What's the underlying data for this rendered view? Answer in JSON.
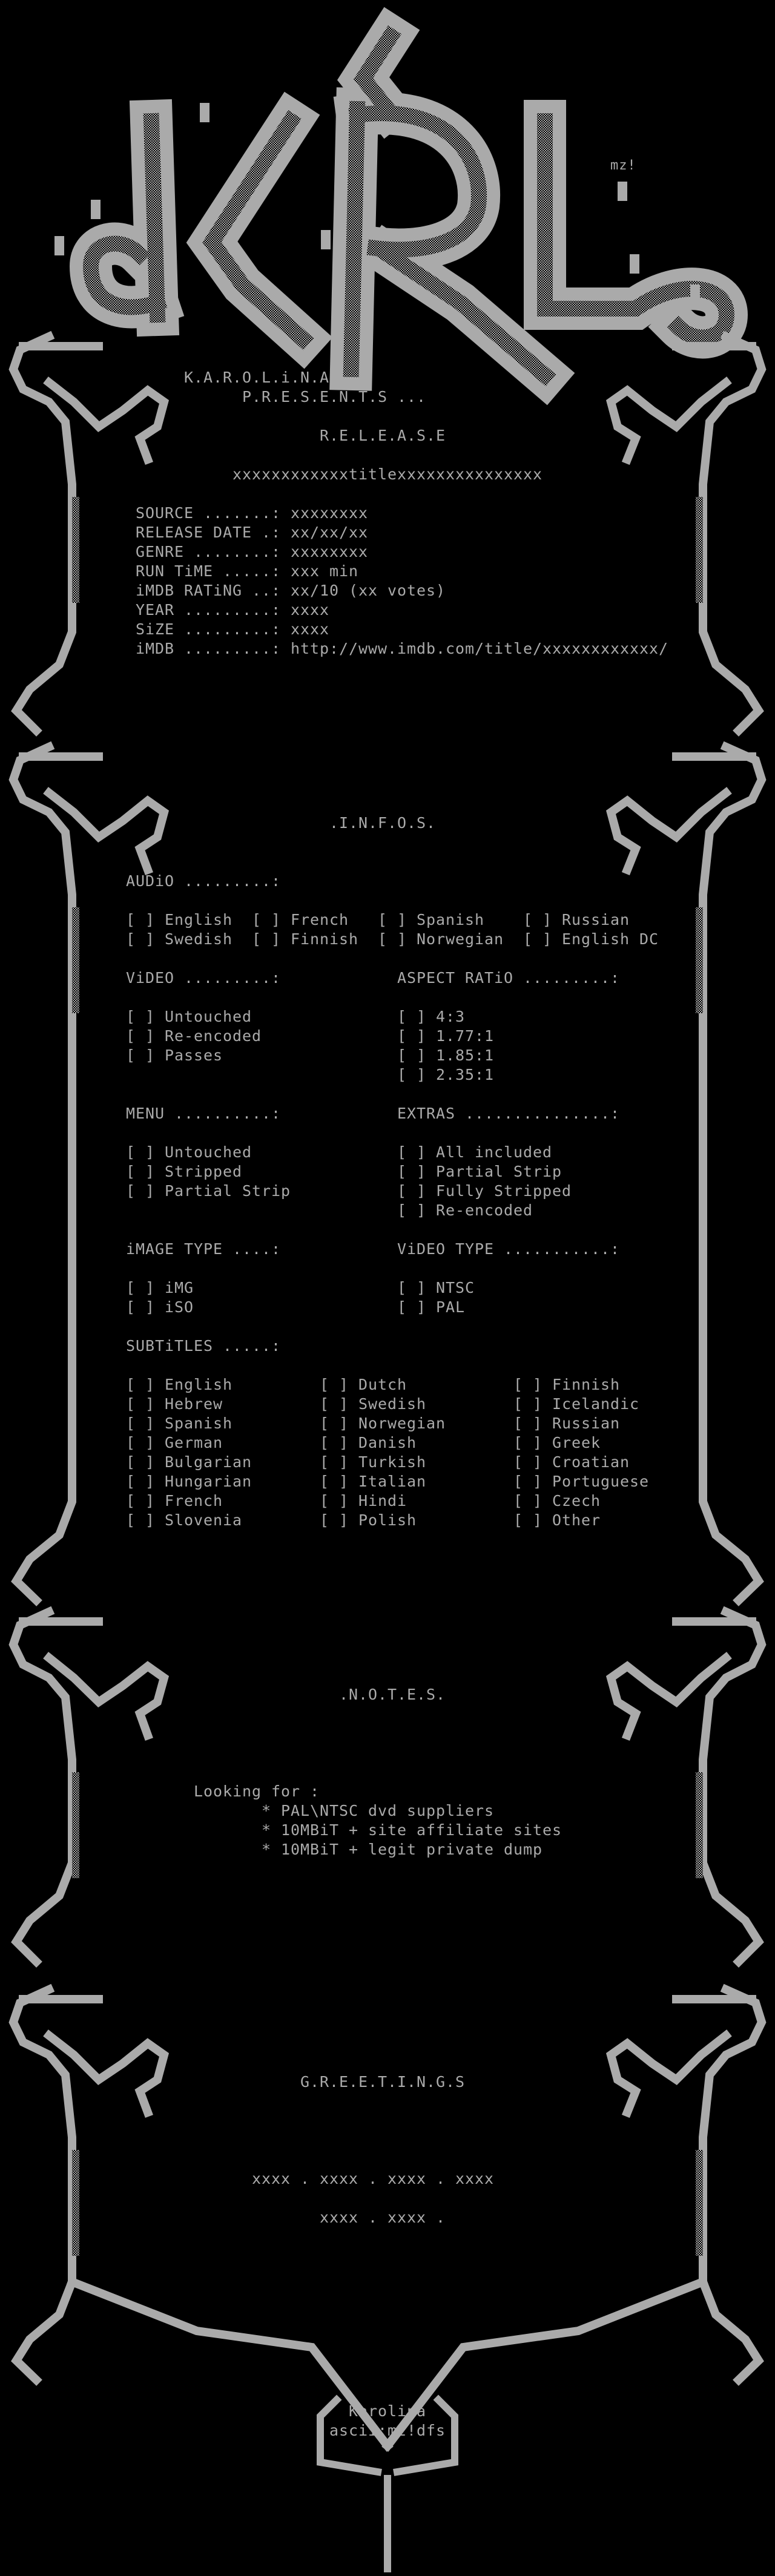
{
  "colors": {
    "background": "#000000",
    "text": "#aaaaaa",
    "art": "#aaaaaa"
  },
  "logo": {
    "letters": "KRL",
    "tag": "mz!"
  },
  "header": {
    "group": "K.A.R.O.L.i.N.A",
    "presents": "P.R.E.S.E.N.T.S ..."
  },
  "release": {
    "heading": "R.E.L.E.A.S.E",
    "title": "xxxxxxxxxxxxtitlexxxxxxxxxxxxxxx",
    "fields": [
      {
        "label": "SOURCE .......:",
        "value": "xxxxxxxx"
      },
      {
        "label": "RELEASE DATE .:",
        "value": "xx/xx/xx"
      },
      {
        "label": "GENRE ........:",
        "value": "xxxxxxxx"
      },
      {
        "label": "RUN TiME .....:",
        "value": "xxx min"
      },
      {
        "label": "iMDB RATiNG ..:",
        "value": "xx/10 (xx votes)"
      },
      {
        "label": "YEAR .........:",
        "value": "xxxx"
      },
      {
        "label": "SiZE .........:",
        "value": "xxxx"
      },
      {
        "label": "iMDB .........:",
        "value": "http://www.imdb.com/title/xxxxxxxxxxxx/"
      }
    ]
  },
  "infos": {
    "heading": ".I.N.F.O.S.",
    "checkbox": "[ ]",
    "audio": {
      "label": "AUDiO .........:",
      "options": [
        "English",
        "French",
        "Spanish",
        "Russian",
        "Swedish",
        "Finnish",
        "Norwegian",
        "English DC"
      ]
    },
    "video": {
      "label": "ViDEO .........:",
      "options": [
        "Untouched",
        "Re-encoded",
        "Passes"
      ]
    },
    "aspect_ratio": {
      "label": "ASPECT RATiO .........:",
      "options": [
        "4:3",
        "1.77:1",
        "1.85:1",
        "2.35:1"
      ]
    },
    "menu": {
      "label": "MENU ..........:",
      "options": [
        "Untouched",
        "Stripped",
        "Partial Strip"
      ]
    },
    "extras": {
      "label": "EXTRAS ...............:",
      "options": [
        "All included",
        "Partial Strip",
        "Fully Stripped",
        "Re-encoded"
      ]
    },
    "image_type": {
      "label": "iMAGE TYPE ....:",
      "options": [
        "iMG",
        "iSO"
      ]
    },
    "video_type": {
      "label": "ViDEO TYPE ...........:",
      "options": [
        "NTSC",
        "PAL"
      ]
    },
    "subtitles": {
      "label": "SUBTiTLES .....:",
      "options": [
        "English",
        "Dutch",
        "Finnish",
        "Hebrew",
        "Swedish",
        "Icelandic",
        "Spanish",
        "Norwegian",
        "Russian",
        "German",
        "Danish",
        "Greek",
        "Bulgarian",
        "Turkish",
        "Croatian",
        "Hungarian",
        "Italian",
        "Portuguese",
        "French",
        "Hindi",
        "Czech",
        "Slovenia",
        "Polish",
        "Other"
      ]
    }
  },
  "notes": {
    "heading": ".N.O.T.E.S.",
    "intro": "Looking for :",
    "items": [
      "* PAL\\NTSC dvd suppliers",
      "* 10MBiT + site affiliate sites",
      "* 10MBiT + legit private dump"
    ]
  },
  "greetings": {
    "heading": "G.R.E.E.T.I.N.G.S",
    "lines": [
      "xxxx . xxxx . xxxx . xxxx",
      "xxxx . xxxx ."
    ]
  },
  "footer": {
    "group": "Karolina",
    "credit": "ascii:mz!dfs"
  }
}
